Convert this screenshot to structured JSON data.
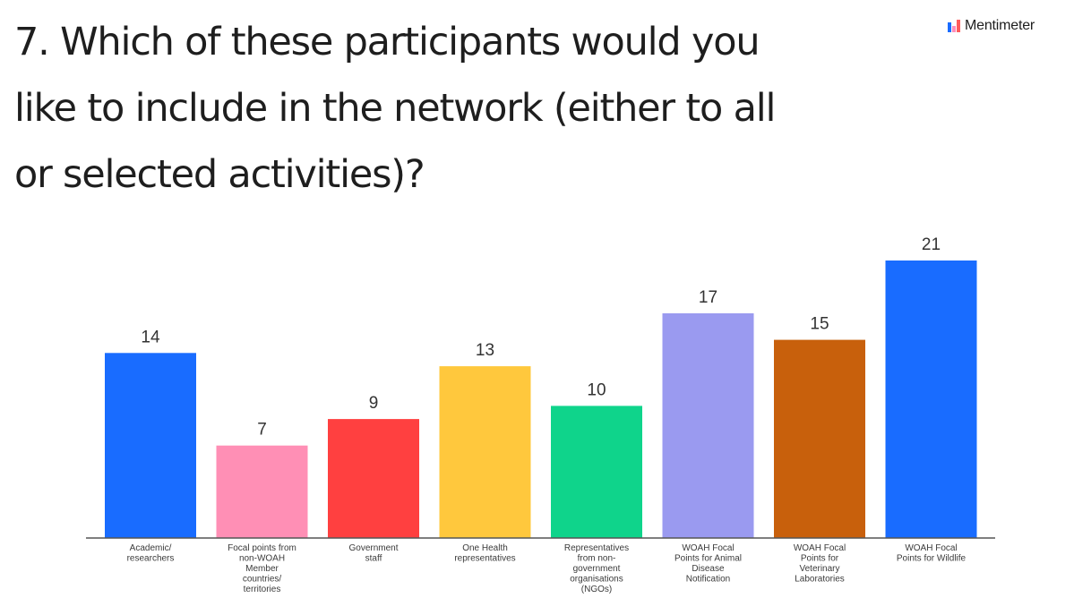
{
  "header": {
    "question_lines": [
      "7. Which of these participants would you",
      "like to include in the network (either to all",
      "or selected activities)?"
    ]
  },
  "brand": {
    "name": "Mentimeter",
    "icon": "mentimeter-logo-icon",
    "icon_colors": [
      "#196cff",
      "#ff8fbd",
      "#ff5c5c"
    ]
  },
  "chart_data": {
    "type": "bar",
    "categories": [
      [
        "Academic/",
        "researchers"
      ],
      [
        "Focal points from",
        "non-WOAH",
        "Member",
        "countries/",
        "territories"
      ],
      [
        "Government",
        "staff"
      ],
      [
        "One Health",
        "representatives"
      ],
      [
        "Representatives",
        "from non-",
        "government",
        "organisations",
        "(NGOs)"
      ],
      [
        "WOAH Focal",
        "Points for Animal",
        "Disease",
        "Notification"
      ],
      [
        "WOAH Focal",
        "Points for",
        "Veterinary",
        "Laboratories"
      ],
      [
        "WOAH Focal",
        "Points for Wildlife"
      ]
    ],
    "values": [
      14,
      7,
      9,
      13,
      10,
      17,
      15,
      21
    ],
    "colors": [
      "#196cff",
      "#ff8fb5",
      "#ff4040",
      "#ffc83d",
      "#0fd48b",
      "#9a9af0",
      "#c8600c",
      "#196cff"
    ],
    "ylim": [
      0,
      21
    ],
    "grid": false,
    "legend": "none"
  }
}
